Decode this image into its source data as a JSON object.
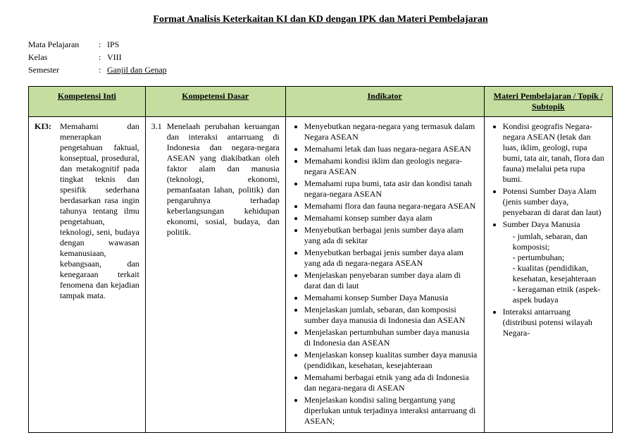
{
  "title": "Format Analisis Keterkaitan KI dan KD dengan IPK dan Materi Pembelajaran",
  "meta": {
    "labels": {
      "subject": "Mata Pelajaran",
      "class": "Kelas",
      "semester": "Semester"
    },
    "subject": "IPS",
    "class": "VIII",
    "semester": "Ganjil dan Genap"
  },
  "headers": {
    "ki": "Kompetensi Inti",
    "kd": "Kompetensi Dasar",
    "ind": "Indikator",
    "mat": "Materi Pembelajaran / Topik / Subtopik"
  },
  "ki": {
    "code": "KI3:",
    "text": "Memahami dan menerapkan pengetahuan faktual, konseptual, prosedural, dan metakognitif pada tingkat teknis dan spesifik sederhana berdasarkan rasa ingin tahunya tentang ilmu pengetahuan, teknologi, seni, budaya dengan wawasan kemanusiaan, kebangsaan, dan kenegaraan terkait fenomena dan kejadian tampak mata."
  },
  "kd": {
    "code": "3.1",
    "text": "Menelaah perubahan keruangan dan interaksi antarruang di Indonesia dan negara-negara ASEAN yang diakibatkan oleh faktor alam dan manusia (teknologi, ekonomi, pemanfaatan lahan, politik) dan pengaruhnya terhadap keberlangsungan kehidupan ekonomi, sosial, budaya, dan politik."
  },
  "indikator": [
    "Menyebutkan negara-negara yang termasuk dalam Negara ASEAN",
    "Memahami letak dan luas negara-negara ASEAN",
    "Memahami kondisi iklim dan geologis negara-negara ASEAN",
    "Memahami rupa bumi, tata asir dan kondisi tanah negara-negara ASEAN",
    "Memahami flora dan fauna negara-negara ASEAN",
    "Memahami konsep sumber daya alam",
    "Menyebutkan berbagai jenis sumber daya alam yang ada di sekitar",
    "Menyebutkan berbagai jenis sumber daya alam yang ada di negara-negara ASEAN",
    "Menjelaskan penyebaran sumber daya alam di darat dan di laut",
    "Memahami konsep Sumber Daya Manusia",
    "Menjelaskan jumlah, sebaran, dan komposisi sumber daya manusia di Indonesia dan ASEAN",
    "Menjelaskan pertumbuhan sumber daya manusia di Indonesia dan ASEAN",
    "Menjelaskan konsep kualitas sumber daya manusia (pendidikan, kesehatan, kesejahteraan",
    "Memahami berbagai etnik yang ada di Indonesia dan negara-negara di ASEAN",
    "Menjelaskan kondisi saling bergantung yang diperlukan untuk terjadinya interaksi antarruang di ASEAN;"
  ],
  "materi": [
    {
      "text": "Kondisi geografis Negara-negara ASEAN (letak dan luas, iklim, geologi, rupa bumi, tata air, tanah, flora dan fauna) melalui peta rupa bumi."
    },
    {
      "text": "Potensi Sumber Daya Alam (jenis sumber daya, penyebaran di darat dan laut)"
    },
    {
      "text": "Sumber Daya Manusia",
      "sub": [
        "jumlah, sebaran, dan komposisi;",
        "pertumbuhan;",
        "kualitas (pendidikan, kesehatan, kesejahteraan",
        "keragaman etnik (aspek-aspek budaya"
      ]
    },
    {
      "text": "Interaksi antarruang (distribusi potensi wilayah Negara-"
    }
  ],
  "colors": {
    "header_bg": "#c5dea0",
    "border": "#000000",
    "text": "#000000",
    "page_bg": "#ffffff"
  }
}
